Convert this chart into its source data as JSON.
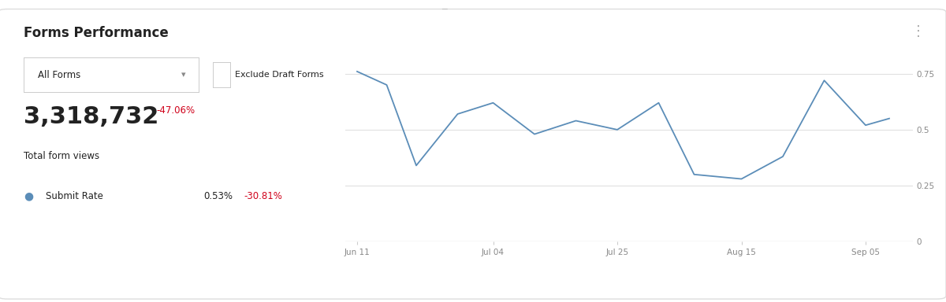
{
  "title": "Forms Performance",
  "subtitle_number": "3,318,732",
  "subtitle_pct": "-47.06%",
  "subtitle_label": "Total form views",
  "legend_label": "Submit Rate",
  "legend_value": "0.53%",
  "legend_pct": "-30.81%",
  "dropdown_text": "All Forms",
  "checkbox_text": "Exclude Draft Forms",
  "x_labels": [
    "Jun 11",
    "Jul 04",
    "Jul 25",
    "Aug 15",
    "Sep 05"
  ],
  "x_values": [
    0,
    23,
    44,
    65,
    86
  ],
  "line_x": [
    0,
    5,
    10,
    17,
    23,
    30,
    37,
    44,
    51,
    57,
    65,
    72,
    79,
    86,
    90
  ],
  "line_y": [
    0.76,
    0.7,
    0.34,
    0.57,
    0.62,
    0.48,
    0.54,
    0.5,
    0.62,
    0.3,
    0.28,
    0.38,
    0.72,
    0.52,
    0.55
  ],
  "line_color": "#5b8db8",
  "y_ticks": [
    0,
    0.25,
    0.5,
    0.75
  ],
  "y_max": 0.85,
  "bg_color": "#ffffff",
  "grid_color": "#e0e0e0",
  "text_dark": "#222222",
  "text_red": "#d0021b",
  "text_gray": "#888888",
  "border_color": "#dddddd"
}
